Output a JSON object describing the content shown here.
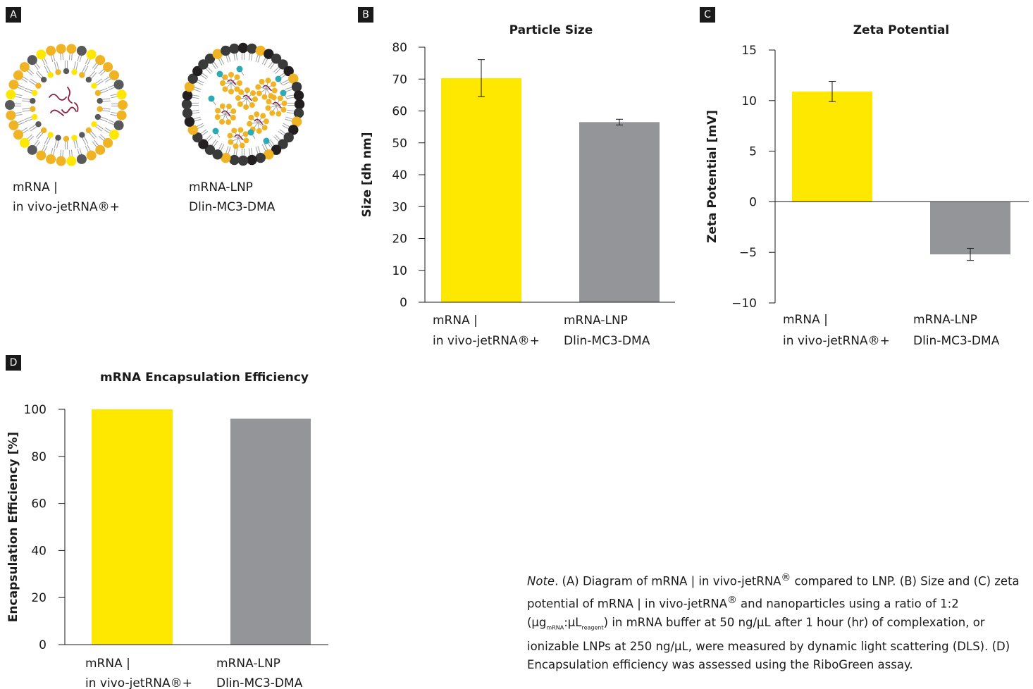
{
  "panels": {
    "A": {
      "badge": "A",
      "labels": [
        [
          "mRNA |",
          "in vivo-jetRNA®+"
        ],
        [
          "mRNA-LNP",
          "Dlin-MC3-DMA"
        ]
      ]
    },
    "B": {
      "badge": "B"
    },
    "C": {
      "badge": "C"
    },
    "D": {
      "badge": "D"
    }
  },
  "colors": {
    "yellow": "#ffe800",
    "gray": "#939598",
    "lipid_gold": "#f0b323",
    "lipid_dark": "#58595b",
    "lipid_black": "#231f20",
    "teal": "#2ba9b4",
    "mrna": "#8b2040"
  },
  "note": {
    "italic_lead": "Note",
    "text_1": ". (A) Diagram of mRNA | in vivo-jetRNA",
    "reg_1": "®",
    "text_2": " compared to LNP. (B) Size and (C) zeta potential of mRNA | in vivo-jetRNA",
    "reg_2": "®",
    "text_3": " and nanoparticles using a ratio of 1:2 (μg",
    "sub_1": "mRNA",
    "text_4": ":μL",
    "sub_2": "reagent",
    "text_5": ") in mRNA buffer at 50 ng/μL after 1 hour (hr) of complexation, or ionizable LNPs at 250 ng/μL, were measured by dynamic light scattering (DLS). (D) Encapsulation efficiency was assessed using the RiboGreen assay."
  },
  "chart_data": [
    {
      "panel": "B",
      "type": "bar",
      "title": "Particle Size",
      "ylabel": "Size [dh nm]",
      "xlabel": "",
      "categories": [
        [
          "mRNA |",
          "in vivo-jetRNA®+"
        ],
        [
          "mRNA-LNP",
          "Dlin-MC3-DMA"
        ]
      ],
      "values": [
        70.3,
        56.5
      ],
      "errors": [
        5.8,
        0.9
      ],
      "ylim": [
        0,
        80
      ],
      "yticks": [
        0,
        10,
        20,
        30,
        40,
        50,
        60,
        70,
        80
      ],
      "bar_colors": [
        "#ffe800",
        "#939598"
      ],
      "grid": false
    },
    {
      "panel": "C",
      "type": "bar",
      "title": "Zeta Potential",
      "ylabel": "Zeta Potential [mV]",
      "xlabel": "",
      "categories": [
        [
          "mRNA |",
          "in vivo-jetRNA®+"
        ],
        [
          "mRNA-LNP",
          "Dlin-MC3-DMA"
        ]
      ],
      "values": [
        10.9,
        -5.2
      ],
      "errors": [
        1.0,
        0.6
      ],
      "ylim": [
        -10,
        15
      ],
      "yticks": [
        -10,
        -5,
        0,
        5,
        10,
        15
      ],
      "bar_colors": [
        "#ffe800",
        "#939598"
      ],
      "grid": false
    },
    {
      "panel": "D",
      "type": "bar",
      "title": "mRNA Encapsulation Efficiency",
      "ylabel": "Encapsulation Efficiency [%]",
      "xlabel": "",
      "categories": [
        [
          "mRNA |",
          "in vivo-jetRNA®+"
        ],
        [
          "mRNA-LNP",
          "Dlin-MC3-DMA"
        ]
      ],
      "values": [
        100,
        96
      ],
      "errors": [
        null,
        null
      ],
      "ylim": [
        0,
        100
      ],
      "yticks": [
        0,
        20,
        40,
        60,
        80,
        100
      ],
      "bar_colors": [
        "#ffe800",
        "#939598"
      ],
      "grid": false
    }
  ]
}
